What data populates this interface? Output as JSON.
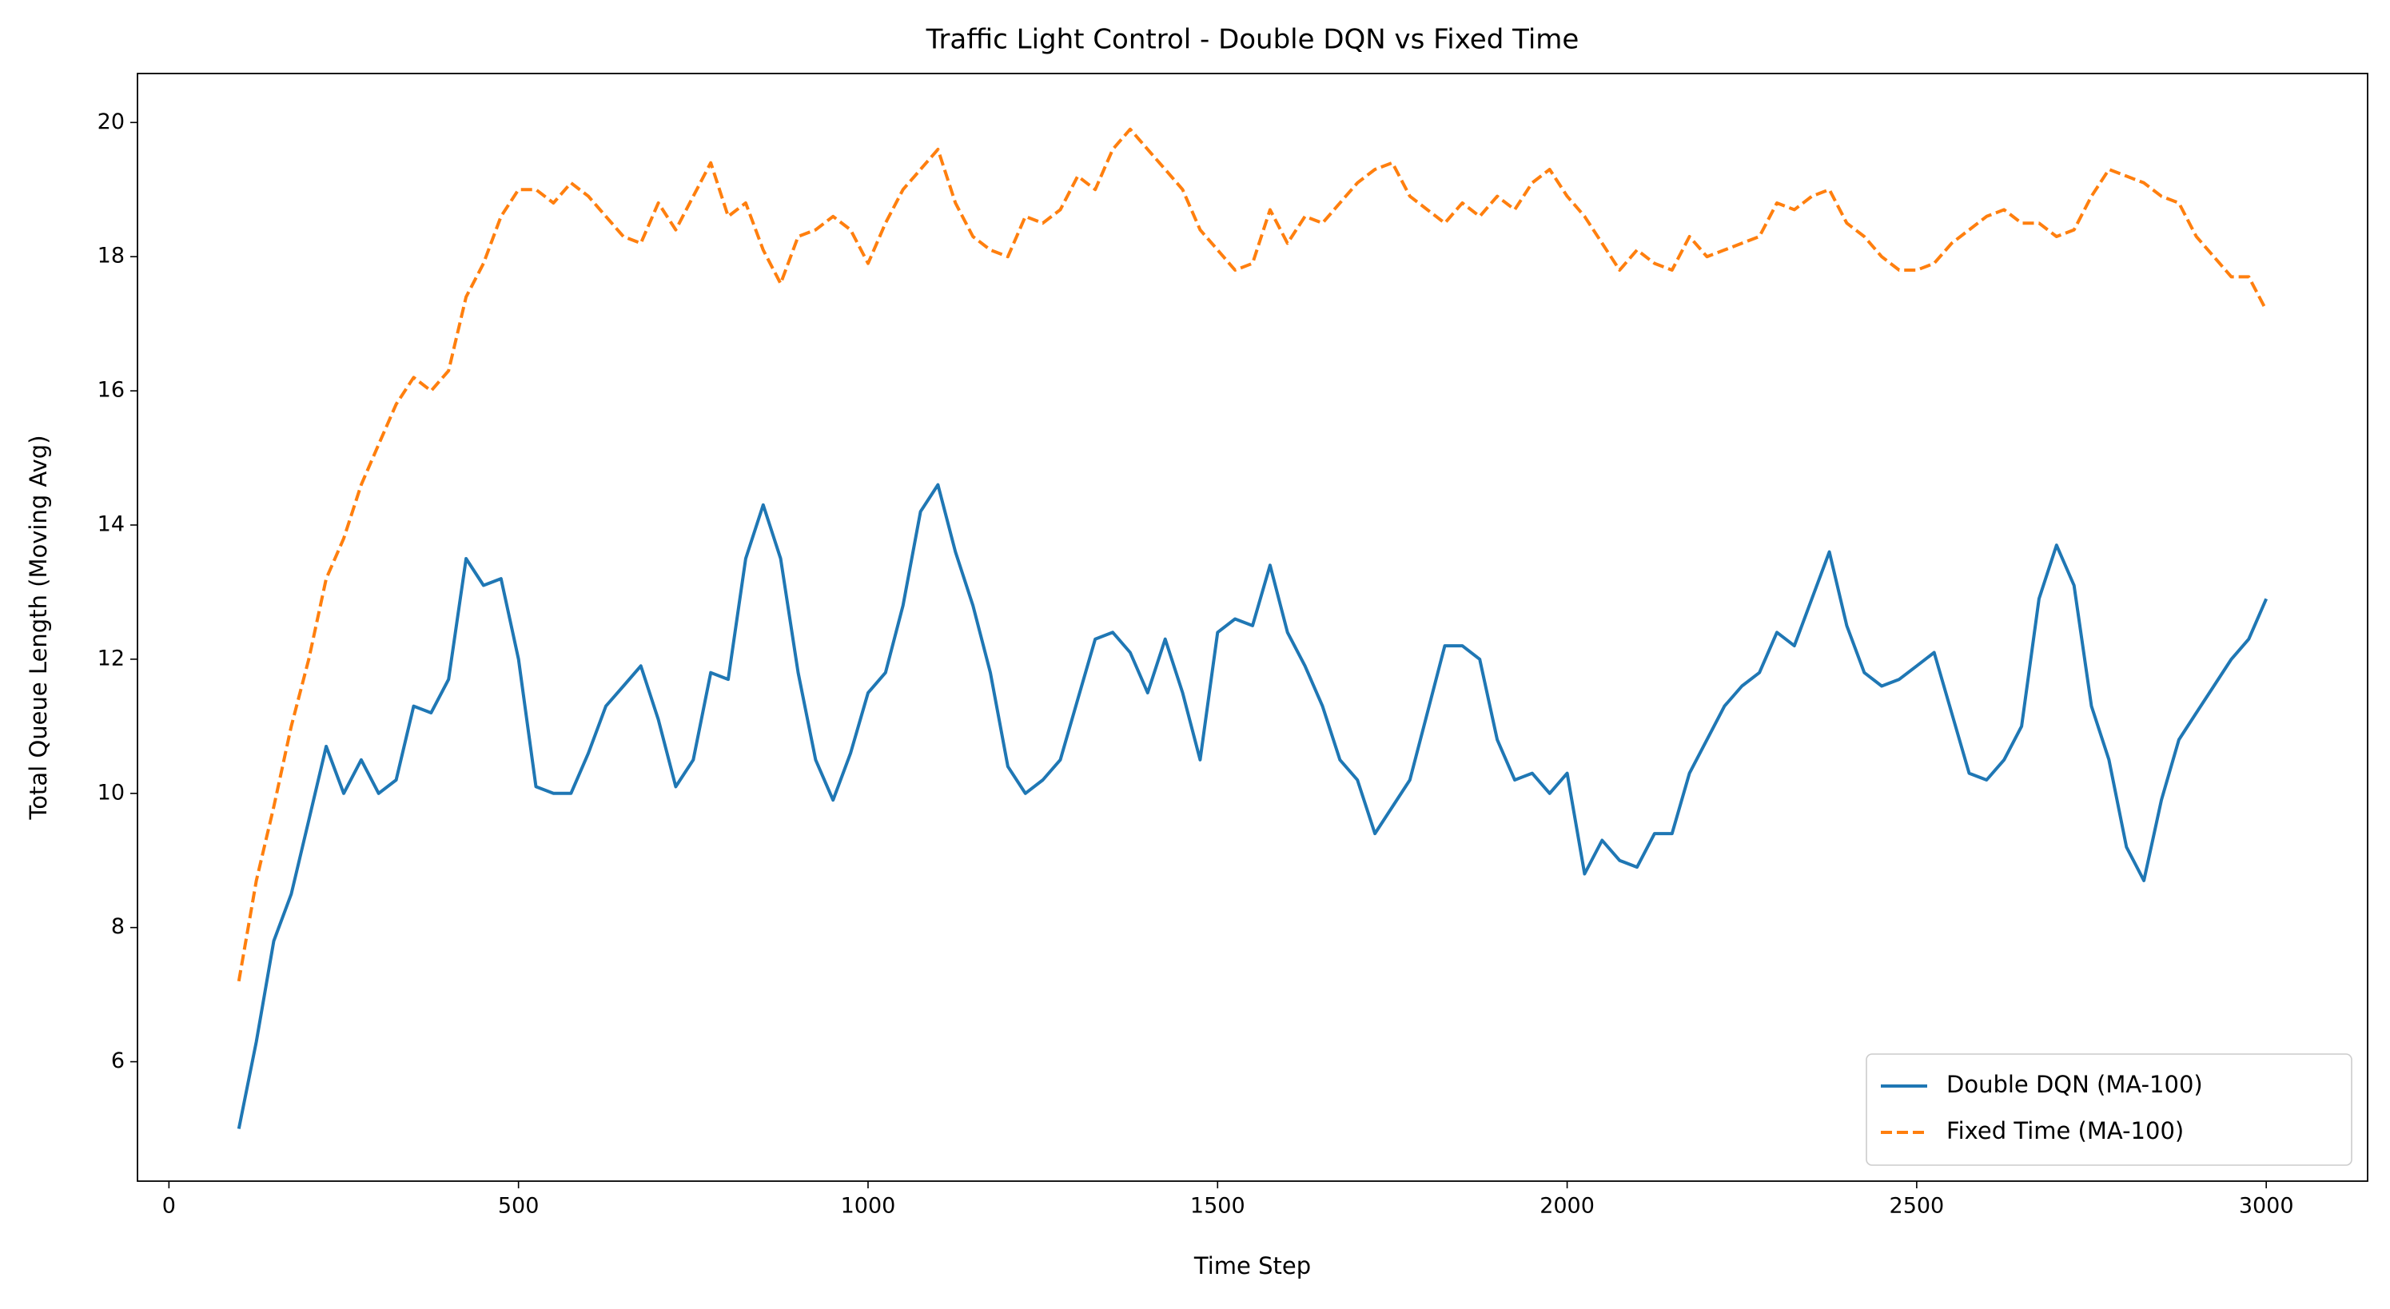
{
  "chart_data": {
    "type": "line",
    "title": "Traffic Light Control - Double DQN vs Fixed Time",
    "xlabel": "Time Step",
    "ylabel": "Total Queue Length (Moving Avg)",
    "x": [
      100,
      125,
      150,
      175,
      200,
      225,
      250,
      275,
      300,
      325,
      350,
      375,
      400,
      425,
      450,
      475,
      500,
      525,
      550,
      575,
      600,
      625,
      650,
      675,
      700,
      725,
      750,
      775,
      800,
      825,
      850,
      875,
      900,
      925,
      950,
      975,
      1000,
      1025,
      1050,
      1075,
      1100,
      1125,
      1150,
      1175,
      1200,
      1225,
      1250,
      1275,
      1300,
      1325,
      1350,
      1375,
      1400,
      1425,
      1450,
      1475,
      1500,
      1525,
      1550,
      1575,
      1600,
      1625,
      1650,
      1675,
      1700,
      1725,
      1750,
      1775,
      1800,
      1825,
      1850,
      1875,
      1900,
      1925,
      1950,
      1975,
      2000,
      2025,
      2050,
      2075,
      2100,
      2125,
      2150,
      2175,
      2200,
      2225,
      2250,
      2275,
      2300,
      2325,
      2350,
      2375,
      2400,
      2425,
      2450,
      2475,
      2500,
      2525,
      2550,
      2575,
      2600,
      2625,
      2650,
      2675,
      2700,
      2725,
      2750,
      2775,
      2800,
      2825,
      2850,
      2875,
      2900,
      2925,
      2950,
      2975,
      3000
    ],
    "series": [
      {
        "name": "Double DQN (MA-100)",
        "color": "#1f77b4",
        "linestyle": "solid",
        "values": [
          5.0,
          6.3,
          7.8,
          8.5,
          9.6,
          10.7,
          10.0,
          10.5,
          10.0,
          10.2,
          11.3,
          11.2,
          11.7,
          13.5,
          13.1,
          13.2,
          12.0,
          10.1,
          10.0,
          10.0,
          10.6,
          11.3,
          11.6,
          11.9,
          11.1,
          10.1,
          10.5,
          11.8,
          11.7,
          13.5,
          14.3,
          13.5,
          11.8,
          10.5,
          9.9,
          10.6,
          11.5,
          11.8,
          12.8,
          14.2,
          14.6,
          13.6,
          12.8,
          11.8,
          10.4,
          10.0,
          10.2,
          10.5,
          11.4,
          12.3,
          12.4,
          12.1,
          11.5,
          12.3,
          11.5,
          10.5,
          12.4,
          12.6,
          12.5,
          13.4,
          12.4,
          11.9,
          11.3,
          10.5,
          10.2,
          9.4,
          9.8,
          10.2,
          11.2,
          12.2,
          12.2,
          12.0,
          10.8,
          10.2,
          10.3,
          10.0,
          10.3,
          8.8,
          9.3,
          9.0,
          8.9,
          9.4,
          9.4,
          10.3,
          10.8,
          11.3,
          11.6,
          11.8,
          12.4,
          12.2,
          12.9,
          13.6,
          12.5,
          11.8,
          11.6,
          11.7,
          11.9,
          12.1,
          11.2,
          10.3,
          10.2,
          10.5,
          11.0,
          12.9,
          13.7,
          13.1,
          11.3,
          10.5,
          9.2,
          8.7,
          9.9,
          10.8,
          11.2,
          11.6,
          12.0,
          12.3,
          12.9
        ]
      },
      {
        "name": "Fixed Time (MA-100)",
        "color": "#ff7f0e",
        "linestyle": "dashed",
        "values": [
          7.2,
          8.7,
          9.8,
          11.0,
          12.0,
          13.2,
          13.8,
          14.6,
          15.2,
          15.8,
          16.2,
          16.0,
          16.3,
          17.4,
          17.9,
          18.6,
          19.0,
          19.0,
          18.8,
          19.1,
          18.9,
          18.6,
          18.3,
          18.2,
          18.8,
          18.4,
          18.9,
          19.4,
          18.6,
          18.8,
          18.1,
          17.6,
          18.3,
          18.4,
          18.6,
          18.4,
          17.9,
          18.5,
          19.0,
          19.3,
          19.6,
          18.8,
          18.3,
          18.1,
          18.0,
          18.6,
          18.5,
          18.7,
          19.2,
          19.0,
          19.6,
          19.9,
          19.6,
          19.3,
          19.0,
          18.4,
          18.1,
          17.8,
          17.9,
          18.7,
          18.2,
          18.6,
          18.5,
          18.8,
          19.1,
          19.3,
          19.4,
          18.9,
          18.7,
          18.5,
          18.8,
          18.6,
          18.9,
          18.7,
          19.1,
          19.3,
          18.9,
          18.6,
          18.2,
          17.8,
          18.1,
          17.9,
          17.8,
          18.3,
          18.0,
          18.1,
          18.2,
          18.3,
          18.8,
          18.7,
          18.9,
          19.0,
          18.5,
          18.3,
          18.0,
          17.8,
          17.8,
          17.9,
          18.2,
          18.4,
          18.6,
          18.7,
          18.5,
          18.5,
          18.3,
          18.4,
          18.9,
          19.3,
          19.2,
          19.1,
          18.9,
          18.8,
          18.3,
          18.0,
          17.7,
          17.7,
          17.2
        ]
      }
    ],
    "xlim": [
      -45,
      3145
    ],
    "ylim": [
      4.22,
      20.73
    ],
    "xticks": [
      0,
      500,
      1000,
      1500,
      2000,
      2500,
      3000
    ],
    "yticks": [
      6,
      8,
      10,
      12,
      14,
      16,
      18,
      20
    ],
    "grid": false,
    "legend": "lower right"
  }
}
